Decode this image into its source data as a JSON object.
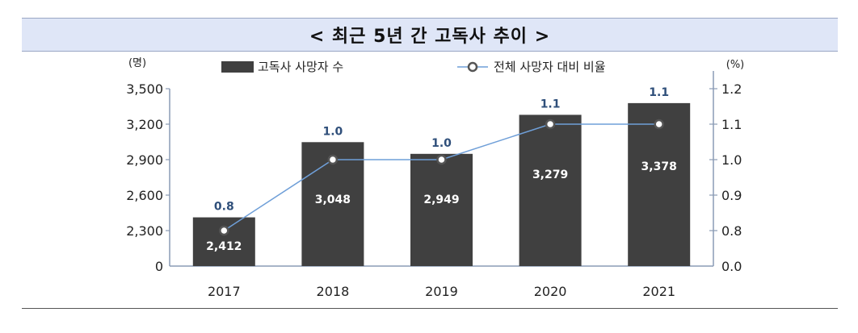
{
  "title": "< 최근 5년 간 고독사 추이 >",
  "chart_data": {
    "type": "bar",
    "categories": [
      "2017",
      "2018",
      "2019",
      "2020",
      "2021"
    ],
    "series": [
      {
        "name": "고독사 사망자 수",
        "type": "bar",
        "axis": "left",
        "values": [
          2412,
          3048,
          2949,
          3279,
          3378
        ],
        "labels": [
          "2,412",
          "3,048",
          "2,949",
          "3,279",
          "3,378"
        ],
        "color": "#404040"
      },
      {
        "name": "전체 사망자 대비 비율",
        "type": "line",
        "axis": "right",
        "values": [
          0.8,
          1.0,
          1.0,
          1.1,
          1.1
        ],
        "labels": [
          "0.8",
          "1.0",
          "1.0",
          "1.1",
          "1.1"
        ],
        "color": "#6f9fd8"
      }
    ],
    "y_left": {
      "unit": "(명)",
      "ticks": [
        0,
        2300,
        2600,
        2900,
        3200,
        3500
      ],
      "tick_labels": [
        "0",
        "2,300",
        "2,600",
        "2,900",
        "3,200",
        "3,500"
      ],
      "broken_axis": true
    },
    "y_right": {
      "unit": "(%)",
      "ticks": [
        0.0,
        0.8,
        0.9,
        1.0,
        1.1,
        1.2
      ],
      "tick_labels": [
        "0.0",
        "0.8",
        "0.9",
        "1.0",
        "1.1",
        "1.2"
      ],
      "broken_axis": true
    },
    "legend_position": "top",
    "grid": false
  }
}
